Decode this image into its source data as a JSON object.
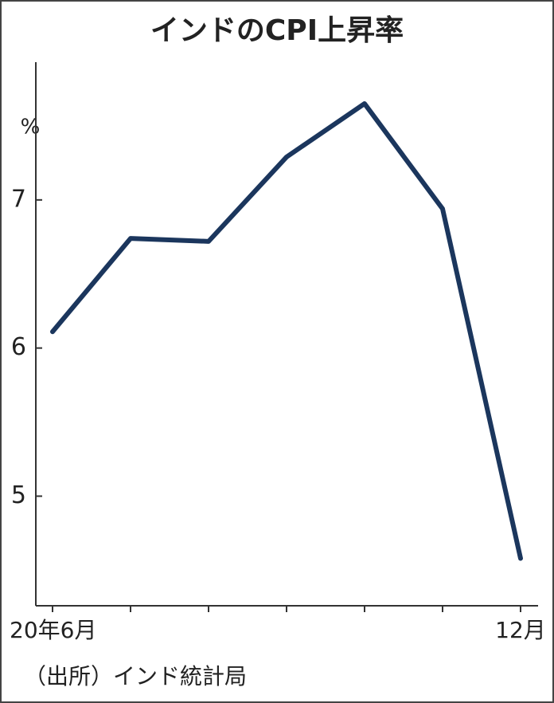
{
  "chart_data": {
    "type": "line",
    "title": "インドのCPI上昇率",
    "y_unit": "%",
    "categories": [
      "20年6月",
      null,
      null,
      null,
      null,
      null,
      "12月"
    ],
    "series": [
      {
        "name": "CPI上昇率",
        "color": "#1b365d",
        "values": [
          6.11,
          6.74,
          6.72,
          7.29,
          7.65,
          6.94,
          4.58
        ]
      }
    ],
    "ylim": [
      4.26,
      7.93
    ],
    "yticks": [
      5,
      6,
      7
    ],
    "grid": false,
    "source": "（出所）インド統計局"
  }
}
